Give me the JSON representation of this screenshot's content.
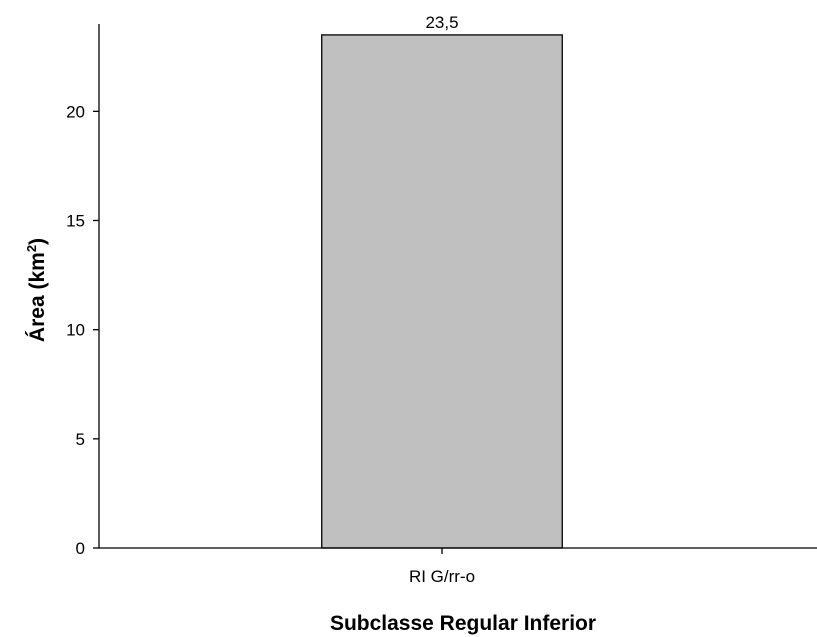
{
  "chart_data": {
    "type": "bar",
    "categories": [
      "RI G/rr-o"
    ],
    "values": [
      23.5
    ],
    "data_labels": [
      "23,5"
    ],
    "xlabel": "Subclasse Regular Inferior",
    "ylabel": {
      "text": "Área (km",
      "superscript": "2",
      "suffix": ")"
    },
    "ylim": [
      0,
      24
    ],
    "yticks": [
      0,
      5,
      10,
      15,
      20
    ],
    "grid": false,
    "bar_color": "#c0c0c0",
    "bar_edge_color": "#000000"
  }
}
